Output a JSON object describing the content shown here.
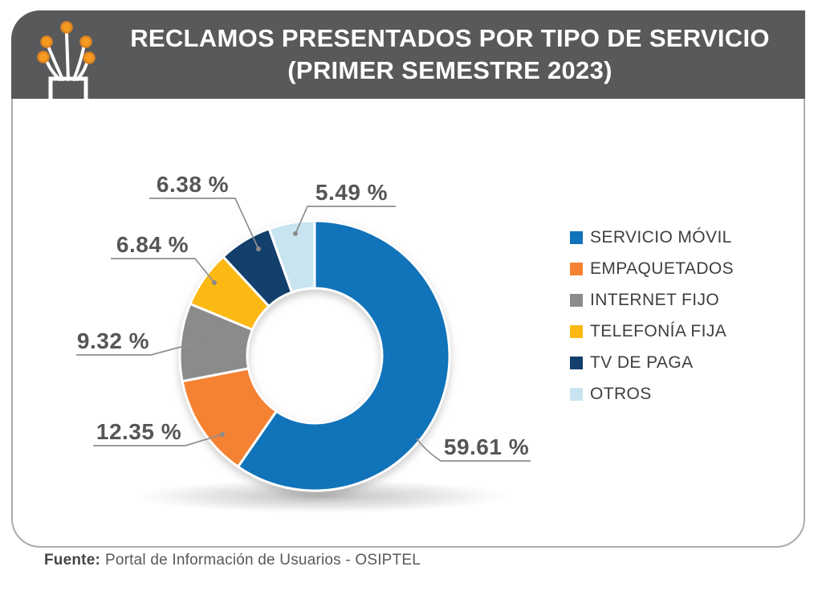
{
  "header": {
    "title_line1": "RECLAMOS PRESENTADOS POR TIPO DE SERVICIO",
    "title_line2": "(PRIMER SEMESTRE 2023)"
  },
  "footer": {
    "source_label": "Fuente:",
    "source_text": "Portal de Información de Usuarios - OSIPTEL"
  },
  "colors": {
    "banner_background": "#58595B",
    "card_border": "#ABABAB",
    "percent_label_text": "#565656",
    "legend_text": "#3F3F3F",
    "icon_dot_orange": "#F49B20"
  },
  "chart_data": {
    "type": "pie",
    "style": "donut",
    "title": "RECLAMOS PRESENTADOS POR TIPO DE SERVICIO (PRIMER SEMESTRE 2023)",
    "legend_position": "right",
    "start_angle_deg": 0,
    "direction": "clockwise",
    "slices": [
      {
        "label": "SERVICIO MÓVIL",
        "value": 59.61,
        "display": "59.61 %",
        "color": "#1173B9"
      },
      {
        "label": "EMPAQUETADOS",
        "value": 12.35,
        "display": "12.35 %",
        "color": "#F58233"
      },
      {
        "label": "INTERNET FIJO",
        "value": 9.32,
        "display": "9.32 %",
        "color": "#8B8B8B"
      },
      {
        "label": "TELEFONÍA FIJA",
        "value": 6.84,
        "display": "6.84 %",
        "color": "#FCB813"
      },
      {
        "label": "TV DE PAGA",
        "value": 6.38,
        "display": "6.38 %",
        "color": "#123F6B"
      },
      {
        "label": "OTROS",
        "value": 5.49,
        "display": "5.49 %",
        "color": "#C8E4F1"
      }
    ],
    "source": "Fuente: Portal de Información de Usuarios - OSIPTEL"
  }
}
